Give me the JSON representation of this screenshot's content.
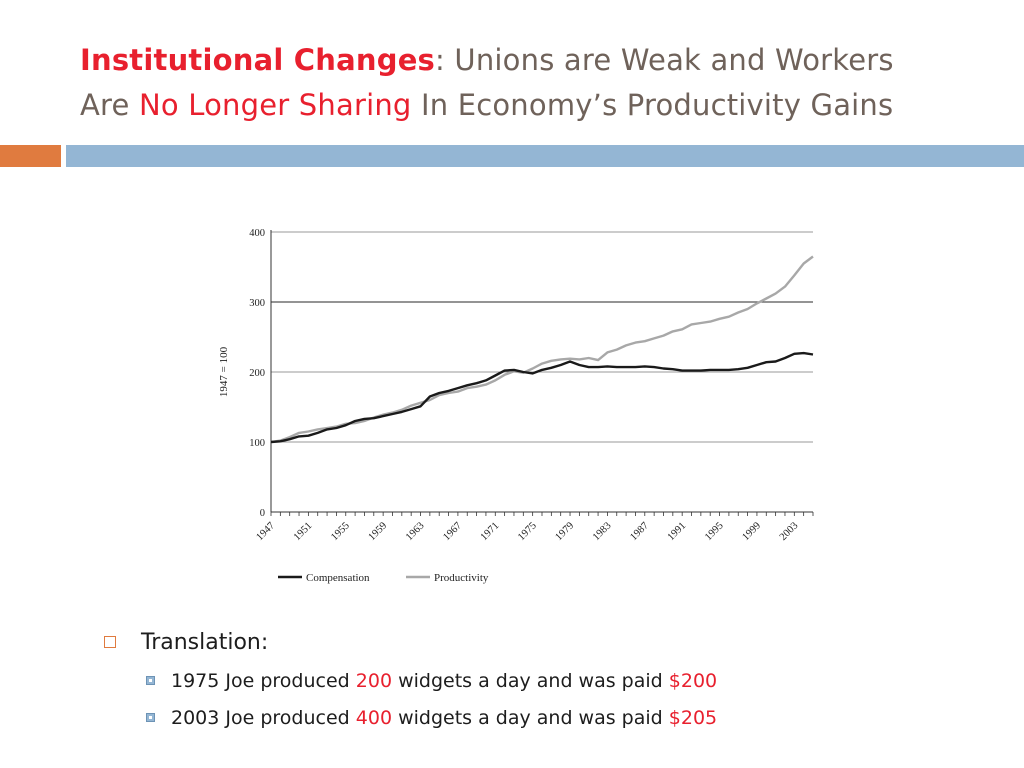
{
  "slide": {
    "title": {
      "part1": "Institutional Changes",
      "part2": ": ",
      "part3": "Unions are Weak and Workers",
      "part4": "Are ",
      "part5": "No Longer Sharing",
      "part6": " In Economy’s Productivity Gains"
    },
    "bullets": {
      "main": "Translation:",
      "sub1": {
        "pre": "1975 Joe produced ",
        "num": "200",
        "mid": " widgets a day and was paid ",
        "pay": "$200"
      },
      "sub2": {
        "pre": "2003 Joe produced ",
        "num": "400",
        "mid": " widgets a day and was paid ",
        "pay": "$205"
      }
    },
    "colors": {
      "accent_red": "#e8202e",
      "accent_orange": "#e07b3f",
      "accent_blue": "#94b6d4",
      "compensation_line": "#1a1a1a",
      "productivity_line": "#a8a8a8"
    }
  },
  "chart_data": {
    "type": "line",
    "title": "",
    "xlabel": "",
    "ylabel": "1947 = 100",
    "xlim": [
      1947,
      2005
    ],
    "ylim": [
      0,
      400
    ],
    "yticks": [
      0,
      100,
      200,
      300,
      400
    ],
    "xticks": [
      "1947",
      "1951",
      "1955",
      "1959",
      "1963",
      "1967",
      "1971",
      "1975",
      "1979",
      "1983",
      "1987",
      "1991",
      "1995",
      "1999",
      "2003"
    ],
    "grid": "horizontal",
    "legend_position": "bottom-left",
    "series": [
      {
        "name": "Compensation",
        "x": [
          1947,
          1948,
          1949,
          1950,
          1951,
          1952,
          1953,
          1954,
          1955,
          1956,
          1957,
          1958,
          1959,
          1960,
          1961,
          1962,
          1963,
          1964,
          1965,
          1966,
          1967,
          1968,
          1969,
          1970,
          1971,
          1972,
          1973,
          1974,
          1975,
          1976,
          1977,
          1978,
          1979,
          1980,
          1981,
          1982,
          1983,
          1984,
          1985,
          1986,
          1987,
          1988,
          1989,
          1990,
          1991,
          1992,
          1993,
          1994,
          1995,
          1996,
          1997,
          1998,
          1999,
          2000,
          2001,
          2002,
          2003,
          2004,
          2005
        ],
        "values": [
          100,
          101,
          104,
          108,
          109,
          113,
          118,
          120,
          124,
          130,
          133,
          134,
          137,
          140,
          143,
          147,
          151,
          165,
          170,
          173,
          177,
          181,
          184,
          188,
          195,
          202,
          203,
          200,
          198,
          203,
          206,
          210,
          215,
          210,
          207,
          207,
          208,
          207,
          207,
          207,
          208,
          207,
          205,
          204,
          202,
          202,
          202,
          203,
          203,
          203,
          204,
          206,
          210,
          214,
          215,
          220,
          226,
          227,
          225
        ]
      },
      {
        "name": "Productivity",
        "x": [
          1947,
          1948,
          1949,
          1950,
          1951,
          1952,
          1953,
          1954,
          1955,
          1956,
          1957,
          1958,
          1959,
          1960,
          1961,
          1962,
          1963,
          1964,
          1965,
          1966,
          1967,
          1968,
          1969,
          1970,
          1971,
          1972,
          1973,
          1974,
          1975,
          1976,
          1977,
          1978,
          1979,
          1980,
          1981,
          1982,
          1983,
          1984,
          1985,
          1986,
          1987,
          1988,
          1989,
          1990,
          1991,
          1992,
          1993,
          1994,
          1995,
          1996,
          1997,
          1998,
          1999,
          2000,
          2001,
          2002,
          2003,
          2004,
          2005
        ],
        "values": [
          100,
          102,
          107,
          113,
          115,
          118,
          120,
          122,
          126,
          127,
          130,
          135,
          139,
          142,
          146,
          152,
          156,
          160,
          167,
          170,
          172,
          177,
          179,
          182,
          188,
          196,
          201,
          199,
          205,
          212,
          216,
          218,
          219,
          218,
          220,
          217,
          228,
          232,
          238,
          242,
          244,
          248,
          252,
          258,
          261,
          268,
          270,
          272,
          276,
          279,
          285,
          290,
          298,
          305,
          312,
          322,
          338,
          355,
          365
        ]
      }
    ]
  }
}
